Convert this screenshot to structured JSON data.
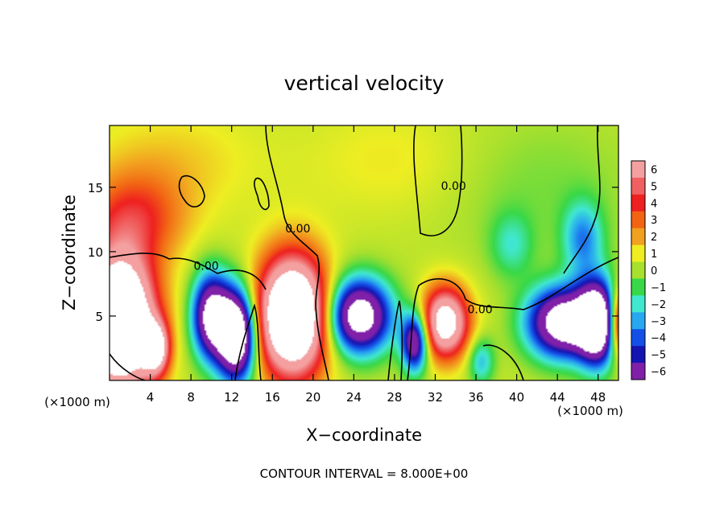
{
  "chart_data": {
    "type": "heatmap",
    "title": "vertical velocity",
    "xlabel": "X−coordinate",
    "ylabel": "Z−coordinate",
    "x_unit_note": "(×1000 m)",
    "z_unit_note": "(×1000 m)",
    "xlim": [
      0,
      50
    ],
    "ylim": [
      0,
      19.8
    ],
    "xticks": [
      4,
      8,
      12,
      16,
      20,
      24,
      28,
      32,
      36,
      40,
      44,
      48
    ],
    "xtick_labels": [
      "4",
      "8",
      "12",
      "16",
      "20",
      "24",
      "28",
      "32",
      "36",
      "40",
      "44",
      "48"
    ],
    "yticks": [
      5,
      10,
      15
    ],
    "ytick_labels": [
      "5",
      "10",
      "15"
    ],
    "colorbar": {
      "levels": [
        6,
        5,
        4,
        3,
        2,
        1,
        0,
        -1,
        -2,
        -3,
        -4,
        -5,
        -6
      ],
      "labels": [
        "6",
        "5",
        "4",
        "3",
        "2",
        "1",
        "0",
        "−1",
        "−2",
        "−3",
        "−4",
        "−5",
        "−6"
      ],
      "colors": [
        "#f4a0a0",
        "#f06060",
        "#ee2020",
        "#f26414",
        "#f2a020",
        "#eeee22",
        "#a8e02e",
        "#38d848",
        "#40e8d0",
        "#28a8f0",
        "#1450e8",
        "#1414b0",
        "#8020a8"
      ]
    },
    "contour_labels": [
      {
        "text": "0.00",
        "x": 18.5,
        "z": 11.5
      },
      {
        "text": "0.00",
        "x": 9.5,
        "z": 8.6
      },
      {
        "text": "0.00",
        "x": 33.8,
        "z": 14.8
      },
      {
        "text": "0.00",
        "x": 36.4,
        "z": 5.2
      }
    ],
    "fields": [
      {
        "x": 2.5,
        "z": 12.5,
        "sx": 3.5,
        "sz": 2.5,
        "v": 3.2
      },
      {
        "x": 1.0,
        "z": 4.5,
        "sx": 2.4,
        "sz": 3.6,
        "v": 14
      },
      {
        "x": 4.5,
        "z": 2.5,
        "sx": 0.9,
        "sz": 1.4,
        "v": 8
      },
      {
        "x": 10.0,
        "z": 5.0,
        "sx": 1.3,
        "sz": 2.3,
        "v": -9
      },
      {
        "x": 12.5,
        "z": 3.5,
        "sx": 1.3,
        "sz": 2.4,
        "v": -12
      },
      {
        "x": 18.0,
        "z": 5.0,
        "sx": 2.4,
        "sz": 3.2,
        "v": 13
      },
      {
        "x": 24.5,
        "z": 5.0,
        "sx": 2.2,
        "sz": 2.0,
        "v": -10
      },
      {
        "x": 30.0,
        "z": 3.0,
        "sx": 0.9,
        "sz": 1.6,
        "v": -8
      },
      {
        "x": 33.0,
        "z": 4.5,
        "sx": 1.6,
        "sz": 1.9,
        "v": 9
      },
      {
        "x": 44.5,
        "z": 4.5,
        "sx": 2.4,
        "sz": 1.9,
        "v": -10
      },
      {
        "x": 48.0,
        "z": 4.5,
        "sx": 1.4,
        "sz": 2.2,
        "v": -11
      },
      {
        "x": 50.0,
        "z": 4.5,
        "sx": 0.8,
        "sz": 1.8,
        "v": 8
      },
      {
        "x": 46.5,
        "z": 11.0,
        "sx": 1.4,
        "sz": 2.0,
        "v": -3.5
      },
      {
        "x": 39.5,
        "z": 10.5,
        "sx": 1.5,
        "sz": 1.8,
        "v": -2
      },
      {
        "x": 36.5,
        "z": 1.5,
        "sx": 0.9,
        "sz": 1.3,
        "v": -3
      },
      {
        "x": 42.0,
        "z": 15.0,
        "sx": 7.0,
        "sz": 4.0,
        "v": -0.8
      },
      {
        "x": 28.0,
        "z": 17.0,
        "sx": 6.0,
        "sz": 3.0,
        "v": 0.8
      },
      {
        "x": 6.0,
        "z": 17.0,
        "sx": 6.0,
        "sz": 3.0,
        "v": 1.1
      }
    ]
  },
  "footer": {
    "contour_interval": "CONTOUR INTERVAL = 8.000E+00"
  }
}
